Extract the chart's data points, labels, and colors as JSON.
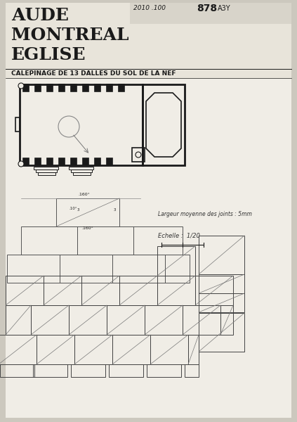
{
  "bg_color": "#ccc8be",
  "paper_color": "#f0ede6",
  "title_lines": [
    "AUDE",
    "MONTREAL",
    "EGLISE"
  ],
  "subtitle": "CALEPINAGE DE 13 DALLES DU SOL DE LA NEF",
  "stamp_text": "2010 .100 878  A3Y",
  "ann1": "Largeur moyenne des joints : 5mm",
  "ann2": "Echelle :  1/20",
  "lc": "#1a1a1a",
  "gray": "#999999",
  "tile_bg": "#e8e5de"
}
